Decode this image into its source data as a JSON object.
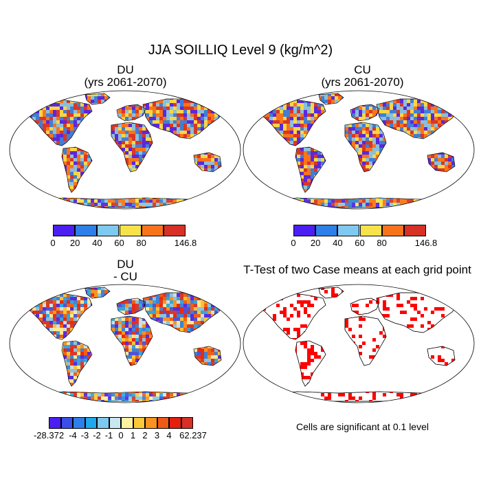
{
  "title": "JJA SOILLIQ Level 9 (kg/m^2)",
  "panels": [
    {
      "id": "du",
      "title_line1": "DU",
      "title_line2": "(yrs 2061-2070)"
    },
    {
      "id": "cu",
      "title_line1": "CU",
      "title_line2": "(yrs 2061-2070)"
    },
    {
      "id": "diff",
      "title_line1": "DU",
      "title_line2": "- CU"
    },
    {
      "id": "ttest",
      "title_line1": "T-Test of two Case means at each grid point",
      "title_line2": ""
    }
  ],
  "colorbar_abs": {
    "labels": [
      "0",
      "20",
      "40",
      "60",
      "80",
      "146.8"
    ],
    "colors": [
      "#4b1ff2",
      "#2e7fe8",
      "#7ec9ef",
      "#f7e24a",
      "#f9731d",
      "#d73027"
    ]
  },
  "colorbar_diff": {
    "labels": [
      "-28.372",
      "-4",
      "-3",
      "-2",
      "-1",
      "0",
      "1",
      "2",
      "3",
      "4",
      "62.237"
    ],
    "colors": [
      "#4b1ff2",
      "#3b4fe8",
      "#2e7fe8",
      "#1fa8ec",
      "#7ec9ef",
      "#c8e8f0",
      "#fdf2a0",
      "#f9c93a",
      "#f99220",
      "#f05a16",
      "#e51f10",
      "#d73027"
    ]
  },
  "significance_note": "Cells are significant at 0.1 level",
  "significance_color": "#ff0000"
}
